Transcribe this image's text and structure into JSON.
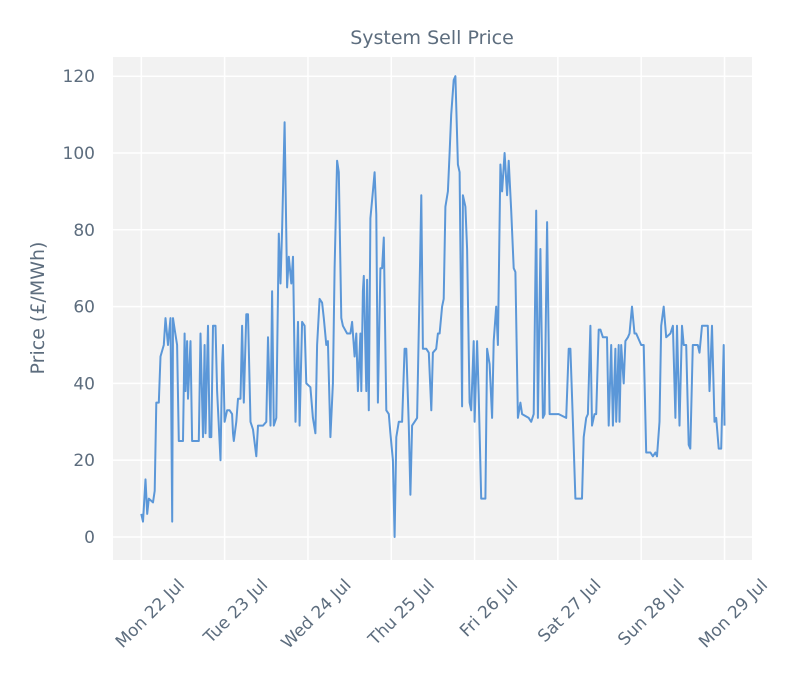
{
  "chart_data": {
    "type": "line",
    "title": "System Sell Price",
    "y_label": "Price (£/MWh)",
    "xlim": [
      -0.34,
      7.33
    ],
    "ylim": [
      -6,
      125
    ],
    "xticks": [
      {
        "value": 0,
        "label": "Mon 22 Jul"
      },
      {
        "value": 1,
        "label": "Tue 23 Jul"
      },
      {
        "value": 2,
        "label": "Wed 24 Jul"
      },
      {
        "value": 3,
        "label": "Thu 25 Jul"
      },
      {
        "value": 4,
        "label": "Fri 26 Jul"
      },
      {
        "value": 5,
        "label": "Sat 27 Jul"
      },
      {
        "value": 6,
        "label": "Sun 28 Jul"
      },
      {
        "value": 7,
        "label": "Mon 29 Jul"
      }
    ],
    "yticks": [
      0,
      20,
      40,
      60,
      80,
      100,
      120
    ],
    "grid": true,
    "x": [
      0,
      0.02,
      0.05,
      0.07,
      0.09,
      0.14,
      0.16,
      0.18,
      0.21,
      0.23,
      0.27,
      0.29,
      0.32,
      0.35,
      0.37,
      0.38,
      0.4,
      0.43,
      0.45,
      0.5,
      0.52,
      0.53,
      0.55,
      0.56,
      0.59,
      0.61,
      0.69,
      0.71,
      0.74,
      0.76,
      0.77,
      0.8,
      0.82,
      0.84,
      0.86,
      0.89,
      0.91,
      0.95,
      0.97,
      0.98,
      1.0,
      1.03,
      1.06,
      1.09,
      1.1,
      1.11,
      1.14,
      1.16,
      1.19,
      1.21,
      1.23,
      1.26,
      1.28,
      1.31,
      1.34,
      1.38,
      1.4,
      1.46,
      1.5,
      1.52,
      1.55,
      1.57,
      1.59,
      1.62,
      1.65,
      1.67,
      1.69,
      1.72,
      1.75,
      1.77,
      1.8,
      1.82,
      1.85,
      1.88,
      1.9,
      1.93,
      1.96,
      1.98,
      2.03,
      2.06,
      2.09,
      2.11,
      2.14,
      2.17,
      2.19,
      2.22,
      2.24,
      2.27,
      2.3,
      2.32,
      2.35,
      2.37,
      2.4,
      2.42,
      2.47,
      2.51,
      2.53,
      2.56,
      2.58,
      2.6,
      2.63,
      2.64,
      2.66,
      2.67,
      2.7,
      2.71,
      2.73,
      2.75,
      2.78,
      2.8,
      2.82,
      2.84,
      2.87,
      2.89,
      2.91,
      2.94,
      2.97,
      2.99,
      3.02,
      3.04,
      3.06,
      3.09,
      3.13,
      3.16,
      3.18,
      3.21,
      3.23,
      3.25,
      3.28,
      3.31,
      3.34,
      3.36,
      3.38,
      3.42,
      3.45,
      3.48,
      3.5,
      3.54,
      3.56,
      3.58,
      3.61,
      3.63,
      3.65,
      3.68,
      3.7,
      3.72,
      3.75,
      3.77,
      3.8,
      3.82,
      3.85,
      3.86,
      3.89,
      3.91,
      3.94,
      3.96,
      3.99,
      4.0,
      4.03,
      4.05,
      4.08,
      4.13,
      4.15,
      4.18,
      4.21,
      4.23,
      4.26,
      4.28,
      4.31,
      4.33,
      4.36,
      4.39,
      4.41,
      4.44,
      4.47,
      4.49,
      4.52,
      4.55,
      4.57,
      4.65,
      4.68,
      4.71,
      4.74,
      4.76,
      4.79,
      4.82,
      4.84,
      4.87,
      4.9,
      5.01,
      5.1,
      5.13,
      5.15,
      5.18,
      5.21,
      5.29,
      5.31,
      5.34,
      5.36,
      5.39,
      5.41,
      5.44,
      5.46,
      5.49,
      5.51,
      5.54,
      5.59,
      5.61,
      5.64,
      5.66,
      5.69,
      5.7,
      5.73,
      5.74,
      5.76,
      5.79,
      5.81,
      5.84,
      5.86,
      5.89,
      5.92,
      5.94,
      6.0,
      6.03,
      6.06,
      6.11,
      6.14,
      6.17,
      6.19,
      6.22,
      6.24,
      6.27,
      6.3,
      6.35,
      6.38,
      6.41,
      6.43,
      6.46,
      6.49,
      6.51,
      6.54,
      6.57,
      6.59,
      6.62,
      6.68,
      6.7,
      6.73,
      6.77,
      6.8,
      6.82,
      6.85,
      6.88,
      6.9,
      6.93,
      6.96,
      6.99,
      7.0
    ],
    "series": [
      {
        "color": "#5b97d8",
        "values": [
          6,
          4,
          15,
          6,
          10,
          9,
          12,
          35,
          35,
          47,
          50,
          57,
          50,
          57,
          4,
          57,
          54,
          50,
          25,
          25,
          53,
          38,
          51,
          36,
          51,
          25,
          25,
          53,
          26,
          50,
          27,
          55,
          26,
          26,
          55,
          55,
          38,
          20,
          45,
          50,
          30,
          33,
          33,
          32,
          27,
          25,
          30,
          36,
          36,
          55,
          35,
          58,
          58,
          30,
          28,
          21,
          29,
          29,
          30,
          52,
          29,
          64,
          29,
          31,
          79,
          66,
          80,
          108,
          65,
          73,
          66,
          73,
          30,
          56,
          29,
          56,
          55,
          40,
          39,
          31,
          27,
          50,
          62,
          61,
          57,
          50,
          51,
          26,
          40,
          70,
          98,
          95,
          57,
          55,
          53,
          53,
          56,
          47,
          53,
          38,
          53,
          38,
          64,
          68,
          38,
          67,
          33,
          83,
          90,
          95,
          84,
          35,
          70,
          70,
          78,
          33,
          32,
          27,
          20,
          0,
          26,
          30,
          30,
          49,
          49,
          29,
          11,
          29,
          30,
          31,
          65,
          89,
          49,
          49,
          48,
          33,
          48,
          49,
          53,
          53,
          60,
          62,
          86,
          90,
          100,
          110,
          119,
          120,
          97,
          95,
          34,
          89,
          86,
          75,
          35,
          33,
          51,
          30,
          51,
          37,
          10,
          10,
          49,
          45,
          31,
          51,
          60,
          50,
          97,
          90,
          100,
          89,
          98,
          85,
          70,
          69,
          31,
          35,
          32,
          31,
          30,
          32,
          85,
          31,
          75,
          31,
          32,
          82,
          32,
          32,
          31,
          49,
          49,
          30,
          10,
          10,
          26,
          31,
          32,
          55,
          29,
          32,
          32,
          54,
          54,
          52,
          52,
          29,
          50,
          29,
          49,
          30,
          50,
          30,
          50,
          40,
          51,
          52,
          53,
          60,
          53,
          53,
          50,
          50,
          22,
          22,
          21,
          22,
          21,
          30,
          55,
          60,
          52,
          53,
          55,
          31,
          55,
          29,
          55,
          50,
          50,
          24,
          23,
          50,
          50,
          48,
          55,
          55,
          55,
          38,
          55,
          30,
          31,
          23,
          23,
          50,
          29
        ]
      }
    ]
  }
}
